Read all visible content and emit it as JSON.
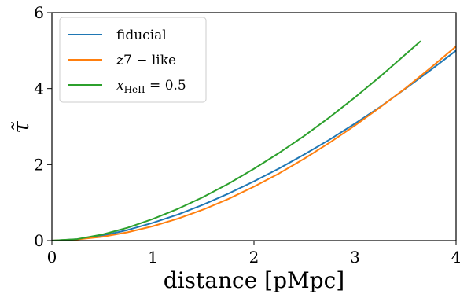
{
  "chart_data": {
    "type": "line",
    "title": "",
    "xlabel": "distance [pMpc]",
    "ylabel": "τ̃",
    "xlim": [
      0,
      4
    ],
    "ylim": [
      0,
      6
    ],
    "xticks": [
      0,
      1,
      2,
      3,
      4
    ],
    "yticks": [
      0,
      2,
      4,
      6
    ],
    "grid": false,
    "legend": "top-left",
    "series": [
      {
        "name": "fiducial",
        "color": "#1f77b4",
        "x": [
          0,
          0.25,
          0.5,
          0.75,
          1.0,
          1.25,
          1.5,
          1.75,
          2.0,
          2.25,
          2.5,
          2.75,
          3.0,
          3.25,
          3.5,
          3.75,
          4.0
        ],
        "y": [
          0,
          0.035,
          0.13,
          0.28,
          0.47,
          0.69,
          0.95,
          1.24,
          1.56,
          1.9,
          2.27,
          2.66,
          3.08,
          3.52,
          4.0,
          4.49,
          5.0
        ]
      },
      {
        "name": "z7 − like",
        "color": "#ff7f0e",
        "x": [
          0,
          0.25,
          0.5,
          0.75,
          1.0,
          1.25,
          1.5,
          1.75,
          2.0,
          2.25,
          2.5,
          2.75,
          3.0,
          3.25,
          3.5,
          3.75,
          4.0
        ],
        "y": [
          0,
          0.03,
          0.1,
          0.22,
          0.38,
          0.58,
          0.82,
          1.1,
          1.42,
          1.77,
          2.16,
          2.58,
          3.03,
          3.51,
          4.01,
          4.55,
          5.11
        ]
      },
      {
        "name": "xHeII = 0.5",
        "color": "#2ca02c",
        "x": [
          0,
          0.25,
          0.5,
          0.75,
          1.0,
          1.25,
          1.5,
          1.75,
          2.0,
          2.25,
          2.5,
          2.75,
          3.0,
          3.25,
          3.5,
          3.65
        ],
        "y": [
          0,
          0.04,
          0.16,
          0.34,
          0.57,
          0.84,
          1.15,
          1.5,
          1.89,
          2.31,
          2.76,
          3.25,
          3.77,
          4.32,
          4.9,
          5.25
        ]
      }
    ]
  },
  "legend": {
    "fiducial": "fiducial",
    "z7_main": "z",
    "z7_rest": "7 − like",
    "xhe_main": "x",
    "xhe_sub": "HeII",
    "xhe_rest": " = 0.5"
  }
}
